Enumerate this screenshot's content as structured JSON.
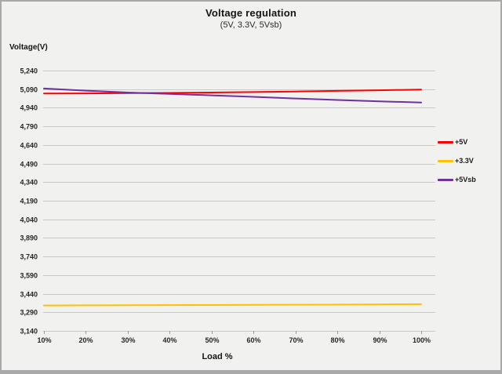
{
  "chart": {
    "title": "Voltage regulation",
    "subtitle": "(5V, 3.3V, 5Vsb)",
    "y_axis_title": "Voltage(V)",
    "x_axis_title": "Load %"
  },
  "chart_data": {
    "type": "line",
    "title": "Voltage regulation",
    "subtitle": "(5V, 3.3V, 5Vsb)",
    "xlabel": "Load %",
    "ylabel": "Voltage(V)",
    "categories": [
      "10%",
      "20%",
      "30%",
      "40%",
      "50%",
      "60%",
      "70%",
      "80%",
      "90%",
      "100%"
    ],
    "series": [
      {
        "name": "+5V",
        "color": "#FF0000",
        "values": [
          5055,
          5056,
          5058,
          5060,
          5063,
          5067,
          5071,
          5076,
          5081,
          5087
        ]
      },
      {
        "name": "+3.3V",
        "color": "#FFC000",
        "values": [
          3345,
          3346,
          3347,
          3348,
          3349,
          3350,
          3351,
          3352,
          3354,
          3356
        ]
      },
      {
        "name": "+5Vsb",
        "color": "#7030A0",
        "values": [
          5095,
          5078,
          5063,
          5052,
          5040,
          5028,
          5015,
          5003,
          4992,
          4982
        ]
      }
    ],
    "ylim": [
      3140,
      5240
    ],
    "ytick_step": 150,
    "ytick_labels_top_to_bottom": [
      "5,240",
      "5,090",
      "4,940",
      "4,790",
      "4,640",
      "4,490",
      "4,340",
      "4,190",
      "4,040",
      "3,890",
      "3,740",
      "3,590",
      "3,440",
      "3,290",
      "3,140"
    ],
    "grid": true,
    "legend_position": "right",
    "colors": {
      "background": "#F1F1F0",
      "gridline": "#C8C8C8",
      "tick_mark": "#9A9A9A",
      "frame_border": "#A9A9A9",
      "text": "#262626"
    }
  }
}
